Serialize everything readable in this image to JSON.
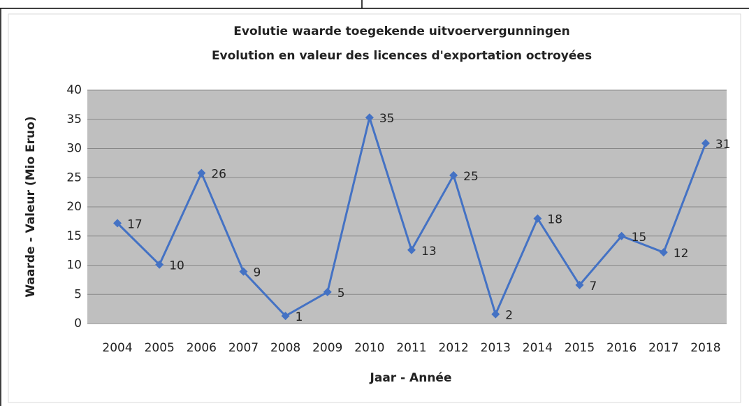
{
  "chart_data": {
    "type": "line",
    "title": "Evolutie waarde toegekende uitvoervergunningen",
    "subtitle": "Evolution en valeur des licences d'exportation octroyées",
    "x_label": "Jaar - Année",
    "y_label": "Waarde - Valeur (Mio Eruo)",
    "categories": [
      "2004",
      "2005",
      "2006",
      "2007",
      "2008",
      "2009",
      "2010",
      "2011",
      "2012",
      "2013",
      "2014",
      "2015",
      "2016",
      "2017",
      "2018"
    ],
    "series": [
      {
        "name": "Waarde",
        "color": "#4472c4",
        "values": [
          17.2,
          10.1,
          25.8,
          8.9,
          1.3,
          5.4,
          35.3,
          12.6,
          25.4,
          1.6,
          18.0,
          6.6,
          15.0,
          12.2,
          30.9
        ],
        "value_labels": [
          "17",
          "10",
          "26",
          "9",
          "1",
          "5",
          "35",
          "13",
          "25",
          "2",
          "18",
          "7",
          "15",
          "12",
          "31"
        ]
      }
    ],
    "ylim": [
      0,
      40
    ],
    "yticks": [
      0,
      5,
      10,
      15,
      20,
      25,
      30,
      35,
      40
    ],
    "grid": true
  }
}
